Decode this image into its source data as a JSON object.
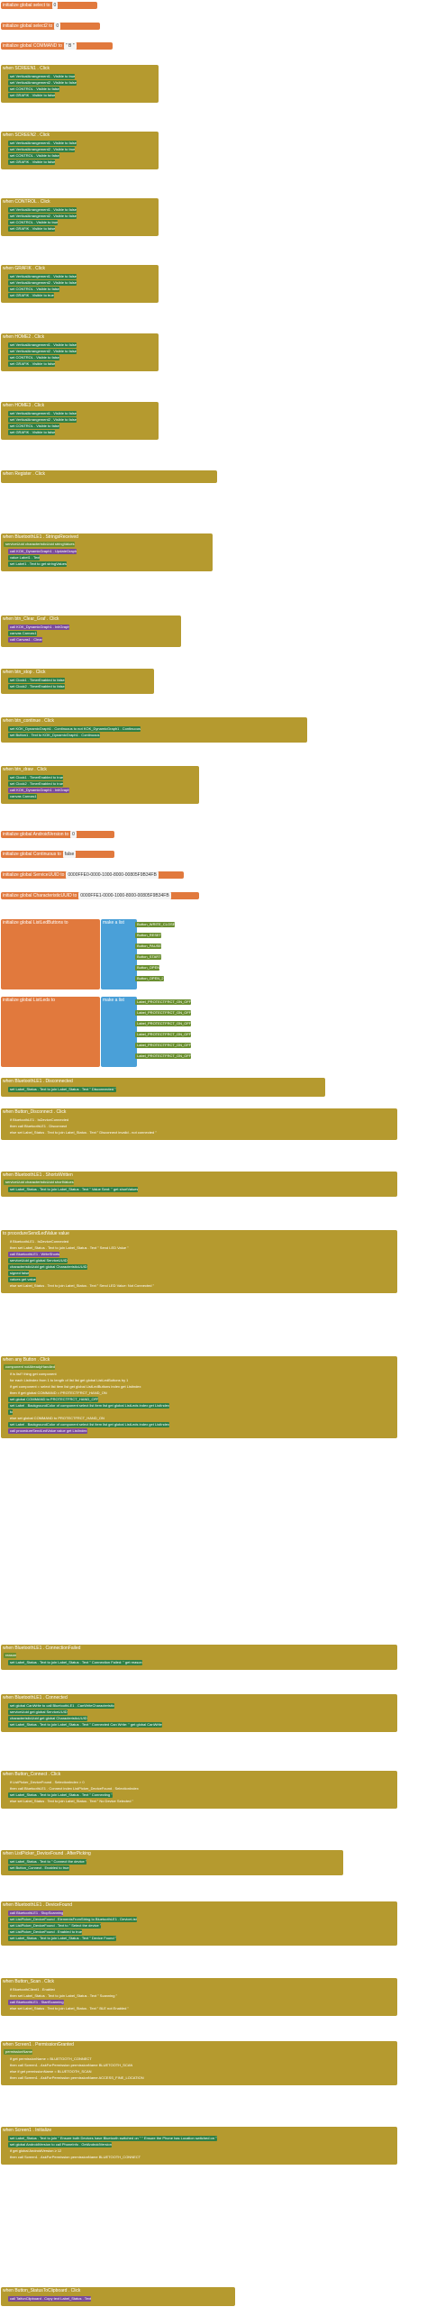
{
  "globals": [
    {
      "name": "initialize global select to",
      "value": "0"
    },
    {
      "name": "initialize global select2 to",
      "value": "0"
    },
    {
      "name": "initialize global COMMAND to",
      "value": " \" B \" "
    }
  ],
  "screen_clicks": [
    {
      "title": "when SCREEN1 . Click",
      "rows": [
        "set VerticalArrangement1 . Visible to true",
        "set VerticalArrangement2 . Visible to false",
        "set CONTROL . Visible to false",
        "set GRAFIK . Visible to false"
      ]
    },
    {
      "title": "when SCREEN2 . Click",
      "rows": [
        "set VerticalArrangement1 . Visible to false",
        "set VerticalArrangement2 . Visible to true",
        "set CONTROL . Visible to false",
        "set GRAFIK . Visible to false"
      ]
    },
    {
      "title": "when CONTROL . Click",
      "rows": [
        "set VerticalArrangement1 . Visible to false",
        "set VerticalArrangement2 . Visible to false",
        "set CONTROL . Visible to true",
        "set GRAFIK . Visible to false"
      ]
    },
    {
      "title": "when GRAFIK . Click",
      "rows": [
        "set VerticalArrangement1 . Visible to false",
        "set VerticalArrangement2 . Visible to false",
        "set CONTROL . Visible to false",
        "set GRAFIK . Visible to true"
      ]
    },
    {
      "title": "when HOME2 . Click",
      "rows": [
        "set VerticalArrangement1 . Visible to false",
        "set VerticalArrangement2 . Visible to false",
        "set CONTROL . Visible to false",
        "set GRAFIK . Visible to false"
      ]
    },
    {
      "title": "when HOME3 . Click",
      "rows": [
        "set VerticalArrangement1 . Visible to false",
        "set VerticalArrangement2 . Visible to false",
        "set CONTROL . Visible to false",
        "set GRAFIK . Visible to false"
      ]
    }
  ],
  "register": {
    "title": "when Register . Click",
    "call": "call BluetoothLE1 . RegisterForStrings",
    "params": [
      "serviceUuid get global ServiceUUID",
      "characteristicUuid get global CharacteristicUUID",
      "utf16 false"
    ]
  },
  "strings_received": {
    "title": "when BluetoothLE1 . StringsReceived",
    "sub": "serviceUuid  characteristicUuid  stringValues",
    "rows": [
      "call KOK_DynamicGraph1 . UpdateGraph",
      "value Label1 . Text",
      "set Label1 . Text to get stringValues"
    ]
  },
  "btn_clear": {
    "title": "when btn_Clear_Graf . Click",
    "rows": [
      "call KOK_DynamicGraph1 . InitGraph",
      "canvas Canvas1",
      "call Canvas1 . Clear"
    ]
  },
  "btn_stop": {
    "title": "when btn_stop . Click",
    "rows": [
      "set Clock1 . TimerEnabled to false",
      "set Clock2 . TimerEnabled to false"
    ]
  },
  "btn_continue": {
    "title": "when btn_continue . Click",
    "rows": [
      "set KOK_DynamicGraph1 . Continuous to not KOK_DynamicGraph1 . Continuous",
      "set Button1 . Text to KOK_DynamicGraph1 . Continuous"
    ]
  },
  "btn_draw": {
    "title": "when btn_draw . Click",
    "rows": [
      "set Clock1 . TimerEnabled to true",
      "set Clock2 . TimerEnabled to true",
      "call KOK_DynamicGraph1 . InitGraph",
      "canvas Canvas1"
    ]
  },
  "more_globals": [
    {
      "name": "initialize global AndroidVersion to",
      "value": "0"
    },
    {
      "name": "initialize global Continuous to",
      "value": "false"
    },
    {
      "name": "initialize global ServiceUUID to",
      "value": "0000FFE0-0000-1000-8000-00805F9B34FB"
    },
    {
      "name": "initialize global CharacteristicUUID to",
      "value": "0000FFE1-0000-1000-8000-00805F9B34FB"
    }
  ],
  "list_buttons": {
    "name": "initialize global ListLedButtons to",
    "make": "make a list",
    "items": [
      "Button_WRITE_CLOSE",
      "Button_RESET",
      "Button_PAUSE",
      "Button_START",
      "Button_OPEN",
      "Button_OPEN_2"
    ]
  },
  "list_leds": {
    "name": "initialize global ListLeds to",
    "make": "make a list",
    "items": [
      "Label_PROTECTFRCT_ON_OFF",
      "Label_PROTECTFRCT_ON_OFF",
      "Label_PROTECTFRCT_ON_OFF",
      "Label_PROTECTFRCT_ON_OFF",
      "Label_PROTECTFRCT_ON_OFF",
      "Label_PROTECTFRCT_ON_OFF"
    ]
  },
  "disconnected": {
    "title": "when BluetoothLE1 . Disconnected",
    "rows": [
      "set Label_Status . Text to join Label_Status . Text \" Disconnected \""
    ]
  },
  "btn_disconnect": {
    "title": "when Button_Disconnect . Click",
    "rows": [
      "if BluetoothLE1 . IsDeviceConnected",
      "then call BluetoothLE1 . Disconnect",
      "else set Label_Status . Text to join Label_Status . Text \" Disconnect invalid - not connected \""
    ]
  },
  "shorts_written": {
    "title": "when BluetoothLE1 . ShortsWritten",
    "sub": "serviceUuid  characteristicUuid  shortValues",
    "rows": [
      "set Label_Status . Text to join Label_Status . Text \" Value Sent: \" get shortValues"
    ]
  },
  "procedure": {
    "title": "to procedureSendLedValue  value",
    "rows": [
      "if BluetoothLE1 . IsDeviceConnected",
      "then set Label_Status . Text to join Label_Status . Text \" Send LED Value \"",
      "call BluetoothLE1 . WriteShorts",
      "serviceUuid get global ServiceUUID",
      "characteristicUuid get global CharacteristicUUID",
      "signed false",
      "values get value",
      "else set Label_Status . Text to join Label_Status . Text \" Send LED Value: Not Connected \""
    ]
  },
  "any_button": {
    "title": "when any Button . Click",
    "sub": "component  notAlreadyHandled",
    "rows": [
      "if is list? thing get component",
      "for each Listindex from 1 to length of list list get global ListLedButtons by 1",
      "if get component = select list item list get global ListLedButtons index get Listindex",
      "then if get global COMMAND = PROTECTFRCT_HAND_ON",
      "set global COMMAND to PROTECTFRCT_HAND_OFF",
      "set Label . BackgroundColor of component select list item list get global ListLeds index get ListIndex",
      "to",
      "else set global COMMAND to PROTECTFRCT_HAND_ON",
      "set Label . BackgroundColor of component select list item list get global ListLeds index get ListIndex",
      "call procedureSendLedValue value get ListIndex"
    ]
  },
  "connection_failed": {
    "title": "when BluetoothLE1 . ConnectionFailed",
    "sub": "reason",
    "rows": [
      "set Label_Status . Text to join Label_Status . Text \" Connection Failed: \" get reason"
    ]
  },
  "connected": {
    "title": "when BluetoothLE1 . Connected",
    "rows": [
      "set global CanWrite to call BluetoothLE1 . CanWriteCharacteristic",
      "serviceUuid get global ServiceUUID",
      "characteristicUuid get global CharacteristicUUID",
      "set Label_Status . Text to join Label_Status . Text \" Connected Can Write: \" get global CanWrite"
    ]
  },
  "btn_connect": {
    "title": "when Button_Connect . Click",
    "rows": [
      "if ListPicker_DeviceFound . SelectionIndex > 0",
      "then call BluetoothLE1 . Connect index ListPicker_DeviceFound . SelectionIndex",
      "set Label_Status . Text to join Label_Status . Text \" Connecting \"",
      "else set Label_Status . Text to join Label_Status . Text \" No Device Selected \""
    ]
  },
  "after_picking": {
    "title": "when ListPicker_DeviceFound . AfterPicking",
    "rows": [
      "set Label_Status . Text to \" Connect the device \"",
      "set Button_Connect . Enabled to true"
    ]
  },
  "device_found": {
    "title": "when BluetoothLE1 . DeviceFound",
    "rows": [
      "call BluetoothLE1 . StopScanning",
      "set ListPicker_DeviceFound . ElementsFromString to BluetoothLE1 . DeviceList",
      "set ListPicker_DeviceFound . Text to \" Select the device \"",
      "set ListPicker_DeviceFound . Enabled to true",
      "set Label_Status . Text to join Label_Status . Text \" Device Found \""
    ]
  },
  "btn_scan": {
    "title": "when Button_Scan . Click",
    "rows": [
      "if BluetoothClient1 . Enabled",
      "then set Label_Status . Text to join Label_Status . Text \" Scanning \"",
      "call BluetoothLE1 . StartScanning",
      "else set Label_Status . Text to join Label_Status . Text \" BLE not Enabled \""
    ]
  },
  "permission_granted": {
    "title": "when Screen1 . PermissionGranted",
    "sub": "permissionName",
    "rows": [
      "if get permissionName = BLUETOOTH_CONNECT",
      "then call Screen1 . AskForPermission permissionName BLUETOOTH_SCAN",
      "else if get permissionName = BLUETOOTH_SCAN",
      "then call Screen1 . AskForPermission permissionName ACCESS_FINE_LOCATION"
    ]
  },
  "initialize": {
    "title": "when Screen1 . Initialize",
    "rows": [
      "set Label_Status . Text to join \" Ensure both Devices have Bluetooth switched on \" \" Ensure the Phone has Location switched on \"",
      "set global AndroidVersion to call PhoneInfo . GetAndroidVersion",
      "if get global AndroidVersion ≥ 12",
      "then call Screen1 . AskForPermission permissionName BLUETOOTH_CONNECT"
    ]
  },
  "status_clip": {
    "title": "when Button_StatusToClipboard . Click",
    "rows": [
      "call TaifunClipboard . Copy text Label_Status . Text"
    ]
  }
}
